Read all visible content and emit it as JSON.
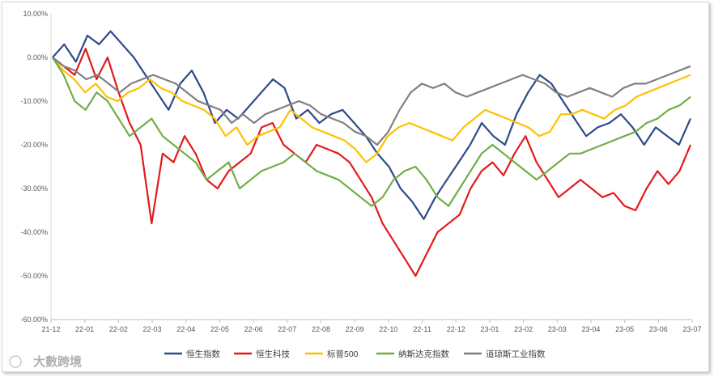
{
  "chart_data": {
    "type": "line",
    "title": "",
    "xlabel": "",
    "ylabel": "",
    "ylim": [
      -60,
      10
    ],
    "y_ticks": [
      "10.00%",
      "0.00%",
      "-10.00%",
      "-20.00%",
      "-30.00%",
      "-40.00%",
      "-50.00%",
      "-60.00%"
    ],
    "x_ticks": [
      "21-12",
      "22-01",
      "22-02",
      "22-03",
      "22-04",
      "22-05",
      "22-06",
      "22-07",
      "22-08",
      "22-09",
      "22-10",
      "22-11",
      "22-12",
      "23-01",
      "23-02",
      "23-03",
      "23-04",
      "23-05",
      "23-06",
      "23-07"
    ],
    "series": [
      {
        "name": "恒生指数",
        "color": "#2e4a8c",
        "values": [
          0,
          3,
          -1,
          5,
          3,
          6,
          3,
          0,
          -4,
          -8,
          -12,
          -6,
          -3,
          -8,
          -15,
          -12,
          -14,
          -11,
          -8,
          -5,
          -7,
          -14,
          -12,
          -15,
          -13,
          -12,
          -15,
          -18,
          -22,
          -25,
          -30,
          -33,
          -37,
          -32,
          -28,
          -24,
          -20,
          -15,
          -18,
          -20,
          -13,
          -8,
          -4,
          -6,
          -10,
          -14,
          -18,
          -16,
          -15,
          -13,
          -16,
          -20,
          -16,
          -18,
          -20,
          -14
        ]
      },
      {
        "name": "恒生科技",
        "color": "#e31a1c",
        "values": [
          0,
          -2,
          -4,
          2,
          -5,
          0,
          -8,
          -15,
          -20,
          -38,
          -22,
          -24,
          -18,
          -22,
          -28,
          -30,
          -26,
          -24,
          -22,
          -16,
          -15,
          -20,
          -22,
          -24,
          -20,
          -21,
          -22,
          -24,
          -28,
          -32,
          -38,
          -42,
          -46,
          -50,
          -45,
          -40,
          -38,
          -36,
          -30,
          -26,
          -24,
          -27,
          -22,
          -18,
          -24,
          -28,
          -32,
          -30,
          -28,
          -30,
          -32,
          -31,
          -34,
          -35,
          -30,
          -26,
          -29,
          -26,
          -20
        ]
      },
      {
        "name": "标普500",
        "color": "#ffc000",
        "values": [
          0,
          -3,
          -5,
          -8,
          -6,
          -9,
          -10,
          -8,
          -7,
          -5,
          -7,
          -8,
          -10,
          -11,
          -12,
          -14,
          -18,
          -16,
          -20,
          -18,
          -17,
          -16,
          -12,
          -14,
          -16,
          -17,
          -18,
          -19,
          -21,
          -24,
          -22,
          -18,
          -16,
          -15,
          -16,
          -17,
          -18,
          -19,
          -16,
          -14,
          -12,
          -13,
          -14,
          -15,
          -16,
          -18,
          -17,
          -13,
          -13,
          -12,
          -13,
          -14,
          -12,
          -11,
          -9,
          -8,
          -7,
          -6,
          -5,
          -4
        ]
      },
      {
        "name": "纳斯达克指数",
        "color": "#70ad47",
        "values": [
          0,
          -4,
          -10,
          -12,
          -8,
          -10,
          -14,
          -18,
          -16,
          -14,
          -18,
          -20,
          -22,
          -24,
          -28,
          -26,
          -24,
          -30,
          -28,
          -26,
          -25,
          -24,
          -22,
          -24,
          -26,
          -27,
          -28,
          -30,
          -32,
          -34,
          -32,
          -28,
          -26,
          -25,
          -28,
          -32,
          -34,
          -30,
          -26,
          -22,
          -20,
          -22,
          -24,
          -26,
          -28,
          -26,
          -24,
          -22,
          -22,
          -21,
          -20,
          -19,
          -18,
          -17,
          -15,
          -14,
          -12,
          -11,
          -9
        ]
      },
      {
        "name": "道琼斯工业指数",
        "color": "#808080",
        "values": [
          0,
          -2,
          -3,
          -5,
          -4,
          -6,
          -8,
          -6,
          -5,
          -4,
          -5,
          -6,
          -8,
          -10,
          -11,
          -12,
          -15,
          -13,
          -15,
          -13,
          -12,
          -11,
          -10,
          -11,
          -13,
          -14,
          -15,
          -17,
          -18,
          -20,
          -17,
          -12,
          -8,
          -6,
          -7,
          -6,
          -8,
          -9,
          -8,
          -7,
          -6,
          -5,
          -4,
          -5,
          -6,
          -8,
          -9,
          -8,
          -7,
          -8,
          -9,
          -7,
          -6,
          -6,
          -5,
          -4,
          -3,
          -2
        ]
      }
    ]
  },
  "watermark": {
    "text": "大數跨境",
    "icon": "logo-circle-icon"
  }
}
